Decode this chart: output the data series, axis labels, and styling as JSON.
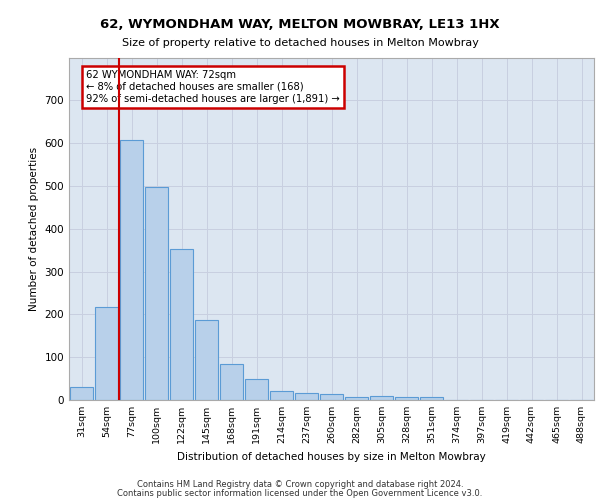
{
  "title1": "62, WYMONDHAM WAY, MELTON MOWBRAY, LE13 1HX",
  "title2": "Size of property relative to detached houses in Melton Mowbray",
  "xlabel": "Distribution of detached houses by size in Melton Mowbray",
  "ylabel": "Number of detached properties",
  "categories": [
    "31sqm",
    "54sqm",
    "77sqm",
    "100sqm",
    "122sqm",
    "145sqm",
    "168sqm",
    "191sqm",
    "214sqm",
    "237sqm",
    "260sqm",
    "282sqm",
    "305sqm",
    "328sqm",
    "351sqm",
    "374sqm",
    "397sqm",
    "419sqm",
    "442sqm",
    "465sqm",
    "488sqm"
  ],
  "values": [
    30,
    218,
    608,
    497,
    352,
    188,
    85,
    50,
    20,
    17,
    15,
    8,
    10,
    8,
    7,
    0,
    0,
    0,
    0,
    0,
    0
  ],
  "bar_color": "#b8d0ea",
  "bar_edge_color": "#5b9bd5",
  "bar_linewidth": 0.8,
  "grid_color": "#c8cfe0",
  "bg_color": "#dce6f1",
  "annotation_box_text": "62 WYMONDHAM WAY: 72sqm\n← 8% of detached houses are smaller (168)\n92% of semi-detached houses are larger (1,891) →",
  "annotation_box_color": "#ffffff",
  "annotation_box_edge_color": "#cc0000",
  "vline_color": "#cc0000",
  "vline_linewidth": 1.5,
  "vline_x": 1.5,
  "ylim": [
    0,
    800
  ],
  "yticks": [
    0,
    100,
    200,
    300,
    400,
    500,
    600,
    700,
    800
  ],
  "footer1": "Contains HM Land Registry data © Crown copyright and database right 2024.",
  "footer2": "Contains public sector information licensed under the Open Government Licence v3.0."
}
